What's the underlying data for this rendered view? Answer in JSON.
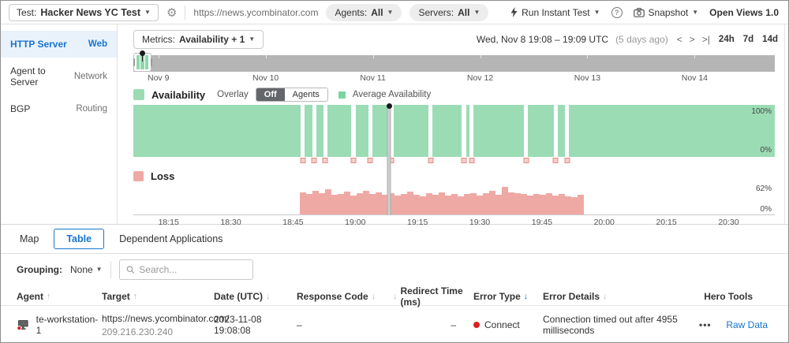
{
  "colors": {
    "accent_blue": "#1774d0",
    "availability_green": "#9bdcb5",
    "avg_green": "#7bd4a0",
    "loss_pink": "#efa9a4",
    "error_red": "#d6231f"
  },
  "topbar": {
    "test_label": "Test:",
    "test_name": "Hacker News YC Test",
    "url": "https://news.ycombinator.com",
    "agents_label": "Agents:",
    "agents_value": "All",
    "servers_label": "Servers:",
    "servers_value": "All",
    "run_instant_test": "Run Instant Test",
    "snapshot": "Snapshot",
    "open_views": "Open Views 1.0"
  },
  "sidebar": {
    "items": [
      {
        "label": "HTTP Server",
        "category": "Web",
        "selected": true
      },
      {
        "label": "Agent to Server",
        "category": "Network",
        "selected": false
      },
      {
        "label": "BGP",
        "category": "Routing",
        "selected": false
      }
    ]
  },
  "view": {
    "metrics_label": "Metrics:",
    "metrics_value": "Availability + 1",
    "date_range": "Wed, Nov 8 19:08 – 19:09 UTC",
    "date_ago": "(5 days ago)",
    "time_ranges": [
      "24h",
      "7d",
      "14d"
    ],
    "mini_timeline_labels": [
      "Nov 9",
      "Nov 10",
      "Nov 11",
      "Nov 12",
      "Nov 13",
      "Nov 14"
    ],
    "availability_legend": {
      "title": "Availability",
      "overlay_label": "Overlay",
      "toggle_options": [
        "Off",
        "Agents"
      ],
      "toggle_selected": "Off",
      "avg_label": "Average Availability"
    },
    "loss_legend": {
      "title": "Loss"
    }
  },
  "chart_data": [
    {
      "type": "area",
      "title": "Availability",
      "ylabel": "Availability",
      "ylim": [
        0,
        100
      ],
      "y_axis_labels": [
        "100%",
        "0%"
      ],
      "x_range": [
        "18:07",
        "20:40"
      ],
      "baseline_value_pct": 100,
      "outage_positions_pct_x": [
        26.1,
        27.9,
        29.6,
        34.0,
        36.6,
        39.9,
        46.0,
        51.2,
        52.4,
        60.9,
        65.5,
        67.3
      ],
      "outage_times": [
        "18:47",
        "18:50",
        "18:52",
        "18:59",
        "19:03",
        "19:08",
        "19:18",
        "19:26",
        "19:28",
        "19:41",
        "19:48",
        "19:51"
      ],
      "cursor_pct_x": 39.9,
      "cursor_time": "19:08"
    },
    {
      "type": "bar",
      "title": "Loss",
      "ylabel": "Loss",
      "ylim": [
        0,
        70
      ],
      "y_axis_labels": [
        "62%",
        "0%"
      ],
      "x_ticks": [
        "18:15",
        "18:30",
        "18:45",
        "19:00",
        "19:15",
        "19:30",
        "19:45",
        "20:00",
        "20:15",
        "20:30"
      ],
      "bars_start_pct_x": 26.0,
      "bars_end_pct_x": 70.3,
      "values": [
        50,
        47,
        54,
        49,
        57,
        45,
        47,
        52,
        44,
        48,
        53,
        46,
        50,
        45,
        48,
        43,
        47,
        52,
        45,
        41,
        48,
        45,
        50,
        44,
        47,
        42,
        46,
        49,
        44,
        48,
        53,
        45,
        62,
        51,
        48,
        46,
        43,
        47,
        45,
        48,
        44,
        46,
        41,
        39,
        45
      ]
    }
  ],
  "tabs": [
    {
      "label": "Map",
      "selected": false
    },
    {
      "label": "Table",
      "selected": true
    },
    {
      "label": "Dependent Applications",
      "selected": false
    }
  ],
  "toolbar": {
    "grouping_label": "Grouping:",
    "grouping_value": "None",
    "search_placeholder": "Search..."
  },
  "table": {
    "columns": [
      {
        "label": "Agent",
        "arrow": "up",
        "active": false,
        "leading": false
      },
      {
        "label": "Target",
        "arrow": "up",
        "active": false,
        "leading": false
      },
      {
        "label": "Date (UTC)",
        "arrow": "down",
        "active": false,
        "leading": false
      },
      {
        "label": "Response Code",
        "arrow": "down",
        "active": false,
        "leading": false
      },
      {
        "label": "Redirect Time (ms)",
        "arrow": "down",
        "active": false,
        "leading": true
      },
      {
        "label": "Error Type",
        "arrow": "down",
        "active": true,
        "leading": false
      },
      {
        "label": "Error Details",
        "arrow": "down",
        "active": false,
        "leading": false
      },
      {
        "label": "Hero Tools",
        "arrow": null,
        "active": false,
        "leading": false
      }
    ],
    "row": {
      "agent": "te-workstation-1",
      "target_url": "https://news.ycombinator.com/",
      "target_ip": "209.216.230.240",
      "date_utc": "2023-11-08 19:08:08",
      "response_code": "–",
      "redirect_time": "–",
      "error_type": "Connect",
      "error_details": "Connection timed out after 4955 milliseconds",
      "more_label": "•••",
      "hero_tools_link": "Raw Data"
    }
  }
}
